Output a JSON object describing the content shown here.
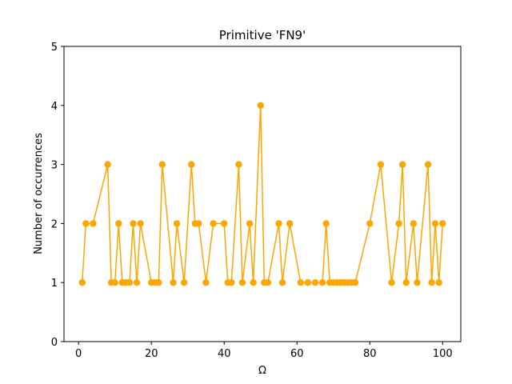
{
  "chart_data": {
    "type": "line",
    "title": "Primitive 'FN9'",
    "xlabel": "Ω",
    "ylabel": "Number of occurrences",
    "xlim": [
      -4,
      105
    ],
    "ylim": [
      0,
      5
    ],
    "xticks": [
      0,
      20,
      40,
      60,
      80,
      100
    ],
    "yticks": [
      0,
      1,
      2,
      3,
      4,
      5
    ],
    "grid": false,
    "color": "#FFA500",
    "series": [
      {
        "x": [
          1,
          2,
          4,
          8,
          9,
          10,
          11,
          12,
          13,
          14,
          15,
          16,
          17,
          20,
          21,
          22,
          23,
          26,
          27,
          29,
          31,
          32,
          33,
          35,
          37,
          40,
          41,
          42,
          44,
          45,
          47,
          48,
          50,
          51,
          52,
          55,
          56,
          58,
          61,
          63,
          65,
          67,
          68,
          69,
          70,
          71,
          72,
          73,
          74,
          75,
          76,
          80,
          83,
          86,
          88,
          89,
          90,
          92,
          93,
          96,
          97,
          98,
          99,
          100
        ],
        "y": [
          1,
          2,
          2,
          3,
          1,
          1,
          2,
          1,
          1,
          1,
          2,
          1,
          2,
          1,
          1,
          1,
          3,
          1,
          2,
          1,
          3,
          2,
          2,
          1,
          2,
          2,
          1,
          1,
          3,
          1,
          2,
          1,
          4,
          1,
          1,
          2,
          1,
          2,
          1,
          1,
          1,
          1,
          2,
          1,
          1,
          1,
          1,
          1,
          1,
          1,
          1,
          2,
          3,
          1,
          2,
          3,
          1,
          2,
          1,
          3,
          1,
          2,
          1,
          2
        ]
      }
    ]
  }
}
